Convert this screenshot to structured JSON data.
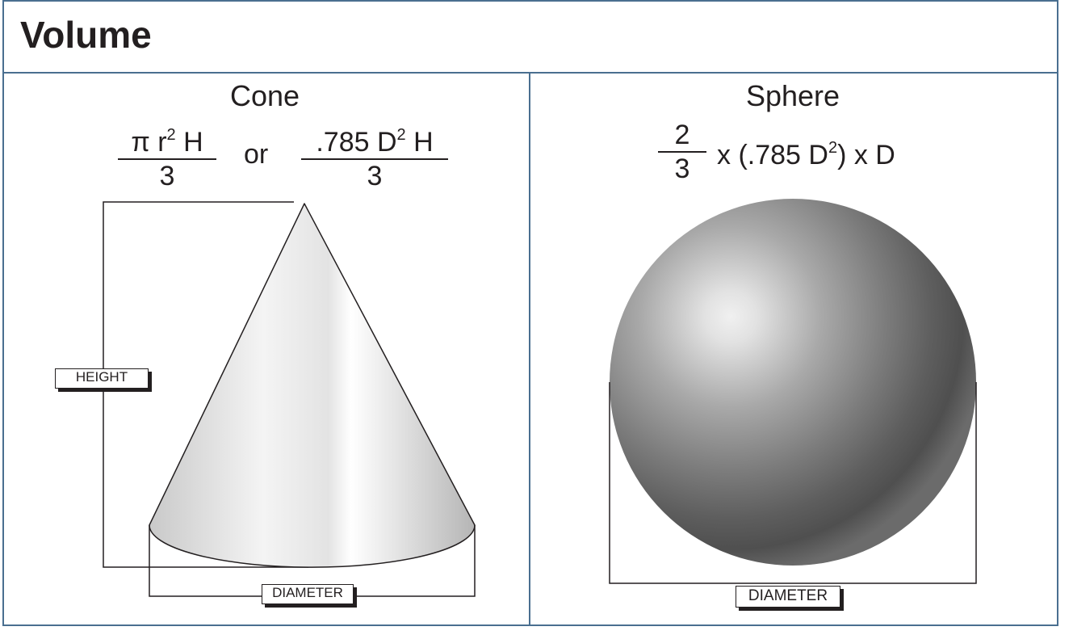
{
  "title": "Volume",
  "cone": {
    "heading": "Cone",
    "formula1": {
      "numerator": "π r",
      "exp": "2",
      "numerator_tail": " H",
      "denominator": "3"
    },
    "or_label": "or",
    "formula2": {
      "numerator": ".785 D",
      "exp": "2",
      "numerator_tail": " H",
      "denominator": "3"
    },
    "height_label": "HEIGHT",
    "diameter_label": "DIAMETER"
  },
  "sphere": {
    "heading": "Sphere",
    "formula": {
      "numerator": "2",
      "denominator": "3",
      "expr": "x (.785 D",
      "exp": "2",
      "expr_tail": ") x D"
    },
    "diameter_label": "DIAMETER"
  }
}
